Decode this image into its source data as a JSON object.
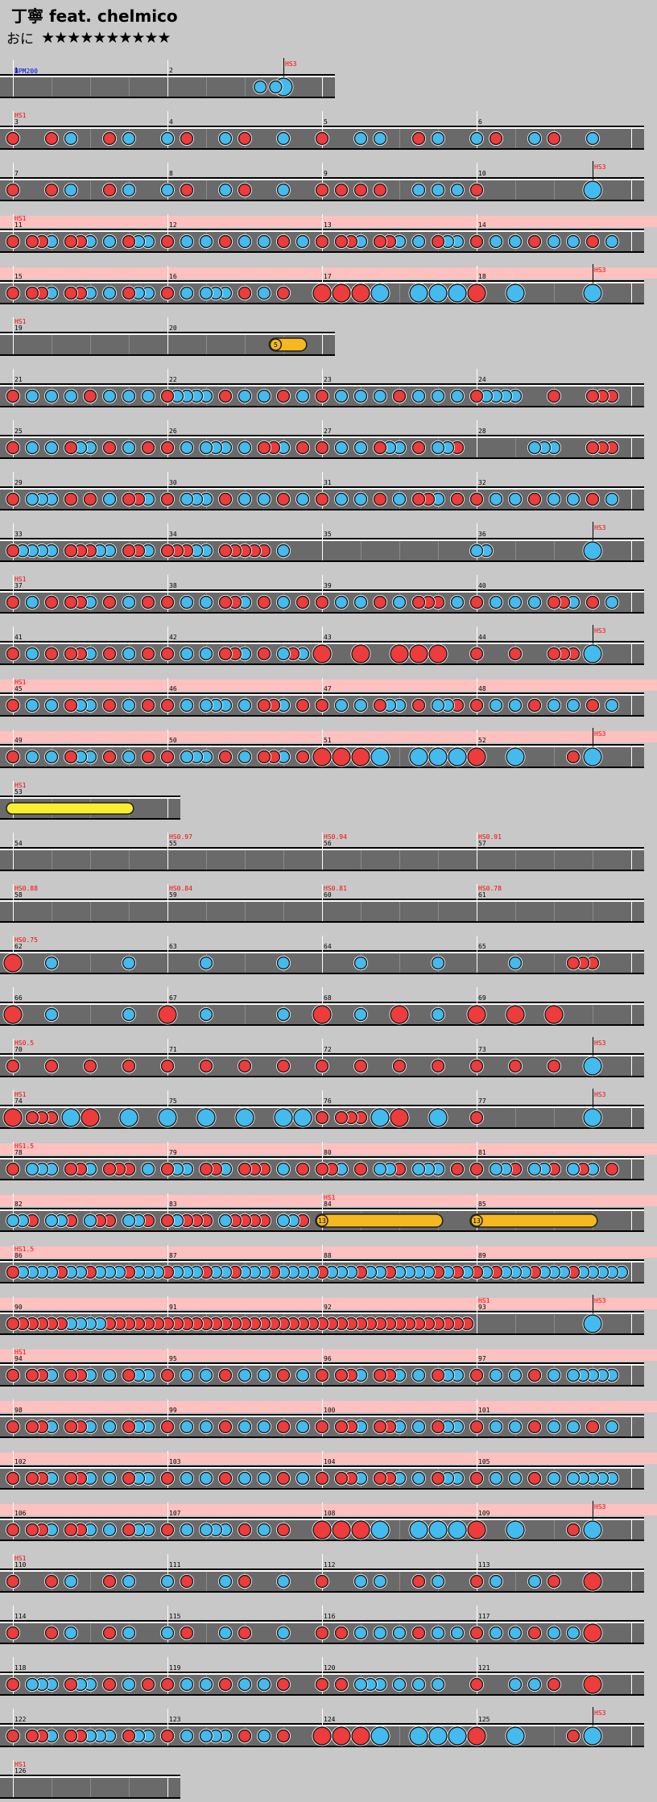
{
  "song": {
    "title": "丁寧 feat. chelmico",
    "difficulty_label": "おに",
    "stars": "★★★★★★★★★★",
    "star_count": 10
  },
  "colors": {
    "background": "#c8c8c8",
    "lane": "#6a6a6a",
    "gogo_band": "#ffc0c0",
    "don": "#ee3b3b",
    "ka": "#44bbee",
    "drumroll": "#f5b820",
    "balloon": "#f0d020",
    "yellow_roll": "#f7ee30",
    "bpm_label": "#0000ff",
    "event_label": "#ff0000"
  },
  "legend": {
    "don": "red note",
    "ka": "blue note",
    "big": "large note",
    "drumroll": "orange drumroll",
    "balloon": "yellow balloon"
  },
  "rows": [
    {
      "measures": [
        1,
        2
      ],
      "events": [
        {
          "t": "BPM200",
          "c": "blue",
          "m": 0
        },
        {
          "t": "HS3",
          "m": 1.75,
          "flag": true
        }
      ],
      "notes": "1.6:k,1.7:k,1.75:K"
    },
    {
      "measures": [
        3,
        4,
        5,
        6
      ],
      "events": [
        {
          "t": "HS1",
          "m": 0
        }
      ],
      "notes": "0:d,0.25:d,0.375:k,0.625:d,0.75:k,1:k,1.125:d,1.375:k,1.5:d,1.75:k,2:d,2.25:k,2.375:k,2.625:d,2.75:k,3:k,3.125:d,3.375:k,3.5:d,3.75:k"
    },
    {
      "measures": [
        7,
        8,
        9,
        10
      ],
      "events": [
        {
          "t": "HS3",
          "m": 3.75,
          "flag": true
        }
      ],
      "notes": "0:d,0.25:d,0.375:k,0.625:d,0.75:k,1:k,1.125:d,1.375:k,1.5:d,1.75:k,2:d,2.125:d,2.25:d,2.375:d,2.625:k,2.75:k,2.875:k,3:d,3.75:K"
    },
    {
      "measures": [
        11,
        12,
        13,
        14
      ],
      "events": [
        {
          "t": "HS1",
          "m": 0
        }
      ],
      "gogo": true,
      "notes": "0:d,0.125:d,0.1875:d,0.25:k,0.375:d,0.4375:d,0.5:k,0.625:k,0.75:d,0.8125:k,0.875:k,1:d,1.125:k,1.25:k,1.375:d,1.5:k,1.625:k,1.75:d,1.875:k,2:d,2.125:d,2.1875:d,2.25:k,2.375:d,2.4375:d,2.5:k,2.625:k,2.75:d,2.8125:k,2.875:k,3:d,3.125:k,3.25:k,3.375:d,3.5:k,3.625:k,3.75:d,3.875:k"
    },
    {
      "measures": [
        15,
        16,
        17,
        18
      ],
      "events": [
        {
          "t": "HS3",
          "m": 3.75,
          "flag": true
        }
      ],
      "gogo": true,
      "notes": "0:d,0.125:d,0.1875:d,0.25:k,0.375:d,0.4375:d,0.5:k,0.625:k,0.75:d,0.8125:k,0.875:k,1:d,1.125:k,1.25:k,1.3125:k,1.375:k,1.5:d,1.625:k,1.75:d,2:D,2.125:D,2.25:D,2.375:K,2.625:K,2.75:K,2.875:K,3:D,3.25:K,3.75:K"
    },
    {
      "measures": [
        19,
        20
      ],
      "events": [
        {
          "t": "HS1",
          "m": 0
        }
      ],
      "notes": "",
      "rolls": [
        {
          "s": 1.7,
          "e": 1.9,
          "type": "balloon",
          "n": "5"
        }
      ]
    },
    {
      "measures": [
        21,
        22,
        23,
        24
      ],
      "events": [],
      "notes": "0:d,0.125:k,0.25:k,0.375:k,0.5:d,0.625:k,0.75:k,0.875:k,1:d,1.0625:k,1.125:k,1.1875:k,1.25:k,1.375:d,1.5:k,1.625:k,1.75:d,1.875:k,2:d,2.125:k,2.25:k,2.375:k,2.5:d,2.625:k,2.75:k,2.875:k,3:d,3.0625:k,3.125:k,3.1875:k,3.25:k,3.5:d,3.75:d,3.8125:d,3.875:d"
    },
    {
      "measures": [
        25,
        26,
        27,
        28
      ],
      "events": [],
      "notes": "0:d,0.125:k,0.25:k,0.375:d,0.4375:k,0.5:k,0.625:d,0.75:k,0.875:d,1:d,1.125:k,1.25:k,1.3125:k,1.375:k,1.5:k,1.625:d,1.6875:d,1.75:k,1.875:d,2:d,2.125:k,2.25:k,2.375:d,2.4375:k,2.5:k,2.625:d,2.75:k,2.8125:k,2.875:d,3.375:k,3.4375:k,3.5:k,3.75:d,3.8125:d,3.875:d"
    },
    {
      "measures": [
        29,
        30,
        31,
        32
      ],
      "events": [],
      "notes": "0:d,0.125:k,0.1875:k,0.25:k,0.375:d,0.5:d,0.625:k,0.75:d,0.8125:d,0.875:k,1:d,1.125:k,1.1875:k,1.25:k,1.375:d,1.5:k,1.625:k,1.75:d,1.875:k,2:d,2.125:k,2.25:k,2.375:d,2.5:k,2.625:d,2.6875:d,2.75:k,2.875:d,3:d,3.125:k,3.25:k,3.375:d,3.5:k,3.625:k,3.75:d,3.875:k"
    },
    {
      "measures": [
        33,
        34,
        35,
        36
      ],
      "events": [
        {
          "t": "HS3",
          "m": 3.75,
          "flag": true
        }
      ],
      "notes": "0:d,0.0625:k,0.125:k,0.1875:k,0.25:k,0.375:d,0.4375:d,0.5:d,0.5625:k,0.625:k,0.75:d,0.8125:d,0.875:k,1:d,1.0625:d,1.125:d,1.1875:k,1.25:k,1.375:d,1.4375:d,1.5:d,1.5625:d,1.625:d,1.75:k,3:k,3.0625:k,3.75:K"
    },
    {
      "measures": [
        37,
        38,
        39,
        40
      ],
      "events": [
        {
          "t": "HS1",
          "m": 0
        }
      ],
      "notes": "0:d,0.125:k,0.25:d,0.375:d,0.4375:d,0.5:k,0.625:d,0.75:k,0.875:d,1:d,1.125:k,1.25:k,1.375:d,1.4375:d,1.5:k,1.625:d,1.75:k,1.875:d,2:d,2.125:k,2.25:k,2.375:d,2.5:k,2.625:d,2.6875:d,2.75:d,2.875:k,3:d,3.125:k,3.25:k,3.375:k,3.5:d,3.5625:d,3.625:k,3.75:d,3.875:k"
    },
    {
      "measures": [
        41,
        42,
        43,
        44
      ],
      "events": [
        {
          "t": "HS3",
          "m": 3.75,
          "flag": true
        }
      ],
      "notes": "0:d,0.125:k,0.25:d,0.375:d,0.4375:d,0.5:k,0.625:d,0.75:k,0.875:d,1:d,1.125:k,1.25:k,1.375:d,1.4375:d,1.5:k,1.625:d,1.75:k,1.8125:d,1.875:k,2:D,2.25:D,2.5:D,2.625:D,2.75:D,3:d,3.25:d,3.5:d,3.5625:d,3.625:d,3.75:K"
    },
    {
      "measures": [
        45,
        46,
        47,
        48
      ],
      "events": [
        {
          "t": "HS1",
          "m": 0
        }
      ],
      "gogo": true,
      "notes": "0:d,0.125:k,0.25:k,0.375:d,0.4375:k,0.5:k,0.625:d,0.75:k,0.875:d,1:d,1.125:k,1.25:k,1.3125:k,1.375:k,1.5:k,1.625:d,1.6875:d,1.75:k,1.875:d,2:d,2.125:k,2.25:k,2.375:d,2.4375:k,2.5:k,2.625:d,2.75:k,2.8125:k,2.875:d,3:d,3.125:k,3.25:k,3.375:d,3.5:k,3.625:k,3.75:d,3.875:k"
    },
    {
      "measures": [
        49,
        50,
        51,
        52
      ],
      "events": [
        {
          "t": "HS3",
          "m": 3.75,
          "flag": true
        }
      ],
      "gogo": true,
      "notes": "0:d,0.125:k,0.25:k,0.375:d,0.4375:k,0.5:k,0.625:d,0.75:k,0.875:d,1:d,1.125:k,1.1875:k,1.25:k,1.375:d,1.5:k,1.625:d,1.6875:d,1.75:k,1.875:d,2:D,2.125:D,2.25:D,2.375:K,2.625:K,2.75:K,2.875:K,3:D,3.25:K,3.625:d,3.75:K"
    },
    {
      "measures": [
        53
      ],
      "events": [
        {
          "t": "HS1",
          "m": 0
        }
      ],
      "notes": "",
      "rolls": [
        {
          "s": 0,
          "e": 0.78,
          "type": "yellow"
        }
      ]
    },
    {
      "measures": [
        54,
        55,
        56,
        57
      ],
      "events": [
        {
          "t": "HS0.97",
          "m": 1
        },
        {
          "t": "HS0.94",
          "m": 2
        },
        {
          "t": "HS0.91",
          "m": 3
        }
      ],
      "notes": ""
    },
    {
      "measures": [
        58,
        59,
        60,
        61
      ],
      "events": [
        {
          "t": "HS0.88",
          "m": 0
        },
        {
          "t": "HS0.84",
          "m": 1
        },
        {
          "t": "HS0.81",
          "m": 2
        },
        {
          "t": "HS0.78",
          "m": 3
        }
      ],
      "notes": ""
    },
    {
      "measures": [
        62,
        63,
        64,
        65
      ],
      "events": [
        {
          "t": "HS0.75",
          "m": 0
        }
      ],
      "notes": "0:D,0.25:k,0.75:k,1.25:k,1.75:k,2.25:k,2.75:k,3.25:k,3.625:d,3.6875:d,3.75:d"
    },
    {
      "measures": [
        66,
        67,
        68,
        69
      ],
      "events": [],
      "notes": "0:D,0.25:k,0.75:k,1:D,1.25:k,1.75:k,2:D,2.25:k,2.5:D,2.75:k,3:D,3.25:D,3.5:D"
    },
    {
      "measures": [
        70,
        71,
        72,
        73
      ],
      "events": [
        {
          "t": "HS0.5",
          "m": 0
        },
        {
          "t": "HS3",
          "m": 3.75,
          "flag": true
        }
      ],
      "notes": "0:d,0.25:d,0.5:d,0.75:d,1:d,1.25:d,1.5:d,1.75:d,2:d,2.25:d,2.5:d,2.75:d,3:d,3.25:d,3.5:d,3.75:K"
    },
    {
      "measures": [
        74,
        75,
        76,
        77
      ],
      "events": [
        {
          "t": "HS1",
          "m": 0
        },
        {
          "t": "HS3",
          "m": 3.75,
          "flag": true
        }
      ],
      "notes": "0:D,0.125:d,0.1875:d,0.25:d,0.375:K,0.5:D,0.75:K,1:K,1.25:K,1.5:K,1.75:K,1.875:K,2:d,2.125:d,2.1875:d,2.25:d,2.375:K,2.5:D,2.75:K,3:d,3.75:K"
    },
    {
      "measures": [
        78,
        79,
        80,
        81
      ],
      "events": [
        {
          "t": "HS1.5",
          "m": 0
        }
      ],
      "gogo": true,
      "notes": "0:d,0.125:k,0.1875:k,0.25:k,0.375:d,0.4375:d,0.5:k,0.625:d,0.6875:d,0.75:d,0.875:k,1:d,1.0625:k,1.125:k,1.25:d,1.3125:d,1.375:k,1.5:d,1.5625:d,1.625:d,1.75:k,1.875:d,2:d,2.0625:d,2.125:k,2.25:d,2.375:k,2.4375:k,2.5:d,2.625:k,2.6875:k,2.75:k,2.875:d,3:d,3.125:k,3.1875:k,3.25:d,3.375:k,3.4375:k,3.5:d,3.625:k,3.6875:d,3.75:k,3.875:d"
    },
    {
      "measures": [
        82,
        83,
        84,
        85
      ],
      "events": [
        {
          "t": "HS1",
          "m": 2
        }
      ],
      "gogo": true,
      "notes": "0:k,0.0625:k,0.125:d,0.25:k,0.3125:k,0.375:d,0.5:k,0.5625:d,0.625:d,0.75:k,0.8125:k,0.875:d,1:d,1.0625:k,1.125:d,1.1875:d,1.25:d,1.375:k,1.4375:d,1.5:d,1.5625:d,1.625:d,1.75:k,1.8125:k,1.875:d",
      "rolls": [
        {
          "s": 2,
          "e": 2.78,
          "type": "drum",
          "n": "13"
        },
        {
          "s": 3,
          "e": 3.78,
          "type": "drum",
          "n": "13"
        }
      ]
    },
    {
      "measures": [
        86,
        87,
        88,
        89
      ],
      "events": [
        {
          "t": "HS1.5",
          "m": 0
        }
      ],
      "gogo": true,
      "notes": "0:d,0.0625:k,0.125:k,0.1875:k,0.25:k,0.3125:d,0.375:k,0.4375:k,0.5:d,0.5625:k,0.625:k,0.6875:k,0.75:d,0.8125:k,0.875:k,0.9375:k,1:d,1.0625:k,1.125:k,1.1875:k,1.25:d,1.3125:k,1.375:k,1.4375:d,1.5:k,1.5625:k,1.625:k,1.6875:d,1.75:k,1.8125:k,1.875:k,1.9375:k,2:d,2.0625:k,2.125:k,2.1875:k,2.25:d,2.3125:k,2.375:k,2.4375:d,2.5:k,2.5625:k,2.625:k,2.6875:k,2.75:d,2.8125:k,2.875:d,2.9375:k,3:d,3.0625:k,3.125:d,3.1875:k,3.25:k,3.3125:k,3.375:d,3.4375:k,3.5:k,3.5625:k,3.625:d,3.6875:k,3.75:k,3.8125:k,3.875:k,3.9375:k"
    },
    {
      "measures": [
        90,
        91,
        92,
        93
      ],
      "events": [
        {
          "t": "HS1",
          "m": 3
        },
        {
          "t": "HS3",
          "m": 3.75,
          "flag": true
        }
      ],
      "gogo": true,
      "notes": "0:d,0.0625:d,0.125:d,0.1875:d,0.25:d,0.3125:d,0.375:k,0.4375:k,0.5:k,0.5625:k,0.625:d,0.6875:d,0.75:d,0.8125:d,0.875:d,0.9375:d,1:d,1.0625:d,1.125:d,1.1875:d,1.25:d,1.3125:d,1.375:d,1.4375:d,1.5:d,1.5625:d,1.625:d,1.6875:d,1.75:d,1.8125:d,1.875:d,1.9375:d,2:d,2.0625:d,2.125:d,2.1875:d,2.25:d,2.3125:d,2.375:d,2.4375:d,2.5:d,2.5625:d,2.625:d,2.6875:d,2.75:d,2.8125:d,2.875:d,2.9375:d,3.75:K"
    },
    {
      "measures": [
        94,
        95,
        96,
        97
      ],
      "events": [
        {
          "t": "HS1",
          "m": 0
        }
      ],
      "gogo": true,
      "notes": "0:d,0.125:d,0.1875:d,0.25:k,0.375:d,0.4375:d,0.5:k,0.625:k,0.75:d,0.8125:k,0.875:k,1:d,1.125:k,1.25:k,1.375:d,1.5:k,1.625:k,1.75:d,1.875:k,2:d,2.125:d,2.1875:d,2.25:k,2.375:d,2.4375:d,2.5:k,2.625:k,2.75:d,2.8125:k,2.875:k,3:d,3.125:k,3.25:k,3.375:d,3.5:k,3.625:k,3.6875:k,3.75:k,3.8125:k,3.875:k"
    },
    {
      "measures": [
        98,
        99,
        100,
        101
      ],
      "events": [],
      "gogo": true,
      "notes": "0:d,0.125:d,0.1875:d,0.25:k,0.375:d,0.4375:d,0.5:k,0.625:k,0.75:d,0.8125:k,0.875:k,1:d,1.125:k,1.25:k,1.375:d,1.5:k,1.625:k,1.75:d,1.875:k,2:d,2.125:d,2.1875:d,2.25:k,2.375:d,2.4375:d,2.5:k,2.625:k,2.75:d,2.8125:k,2.875:k,3:d,3.125:k,3.25:k,3.375:d,3.5:k,3.625:k,3.75:d,3.875:k"
    },
    {
      "measures": [
        102,
        103,
        104,
        105
      ],
      "events": [],
      "gogo": true,
      "notes": "0:d,0.125:d,0.1875:d,0.25:k,0.375:d,0.4375:d,0.5:k,0.625:k,0.75:d,0.8125:k,0.875:k,1:d,1.125:k,1.25:k,1.375:d,1.5:k,1.625:k,1.75:d,1.875:k,2:d,2.125:d,2.1875:d,2.25:k,2.375:d,2.4375:d,2.5:k,2.625:k,2.75:d,2.8125:k,2.875:k,3:d,3.125:k,3.25:k,3.375:d,3.5:k,3.625:k,3.6875:k,3.75:k,3.8125:k,3.875:k"
    },
    {
      "measures": [
        106,
        107,
        108,
        109
      ],
      "events": [
        {
          "t": "HS3",
          "m": 3.75,
          "flag": true
        }
      ],
      "gogo": true,
      "notes": "0:d,0.125:d,0.1875:d,0.25:k,0.375:d,0.4375:d,0.5:k,0.625:k,0.75:d,0.8125:k,0.875:k,1:d,1.125:k,1.25:k,1.3125:k,1.375:k,1.5:d,1.625:k,1.75:d,2:D,2.125:D,2.25:D,2.375:K,2.625:K,2.75:K,2.875:K,3:D,3.25:K,3.625:d,3.75:K"
    },
    {
      "measures": [
        110,
        111,
        112,
        113
      ],
      "events": [
        {
          "t": "HS1",
          "m": 0
        }
      ],
      "notes": "0:d,0.25:d,0.375:k,0.625:d,0.75:k,1:k,1.125:d,1.375:k,1.5:d,1.75:k,2:d,2.25:k,2.375:k,2.625:d,2.75:k,3:d,3.125:k,3.375:k,3.5:d,3.75:D"
    },
    {
      "measures": [
        114,
        115,
        116,
        117
      ],
      "events": [],
      "notes": "0:d,0.25:d,0.375:k,0.625:d,0.75:k,1:k,1.125:d,1.375:k,1.5:d,1.75:k,2:d,2.125:d,2.25:k,2.375:k,2.5:k,2.625:d,2.75:k,2.875:k,3:d,3.125:k,3.25:k,3.375:d,3.5:k,3.625:k,3.75:D"
    },
    {
      "measures": [
        118,
        119,
        120,
        121
      ],
      "events": [],
      "notes": "0:d,0.125:k,0.1875:k,0.25:k,0.375:d,0.4375:k,0.5:k,0.625:d,0.75:k,0.875:d,1:d,1.125:k,1.25:k,1.375:d,1.5:k,1.625:k,1.75:d,2:d,2.125:d,2.25:k,2.3125:k,2.375:k,2.5:k,2.625:k,2.75:k,3:d,3.25:k,3.375:k,3.5:d,3.75:D"
    },
    {
      "measures": [
        122,
        123,
        124,
        125
      ],
      "events": [
        {
          "t": "HS3",
          "m": 3.75,
          "flag": true
        }
      ],
      "notes": "0:d,0.125:d,0.1875:d,0.25:k,0.375:d,0.4375:d,0.5:k,0.5625:k,0.625:k,0.75:d,0.8125:k,0.875:k,1:d,1.125:k,1.25:k,1.3125:k,1.375:k,1.5:d,1.625:k,1.75:d,2:D,2.125:D,2.25:D,2.375:K,2.625:K,2.75:K,2.875:K,3:D,3.25:K,3.625:d,3.75:K"
    },
    {
      "measures": [
        126
      ],
      "events": [
        {
          "t": "HS1",
          "m": 0
        }
      ],
      "notes": ""
    }
  ]
}
